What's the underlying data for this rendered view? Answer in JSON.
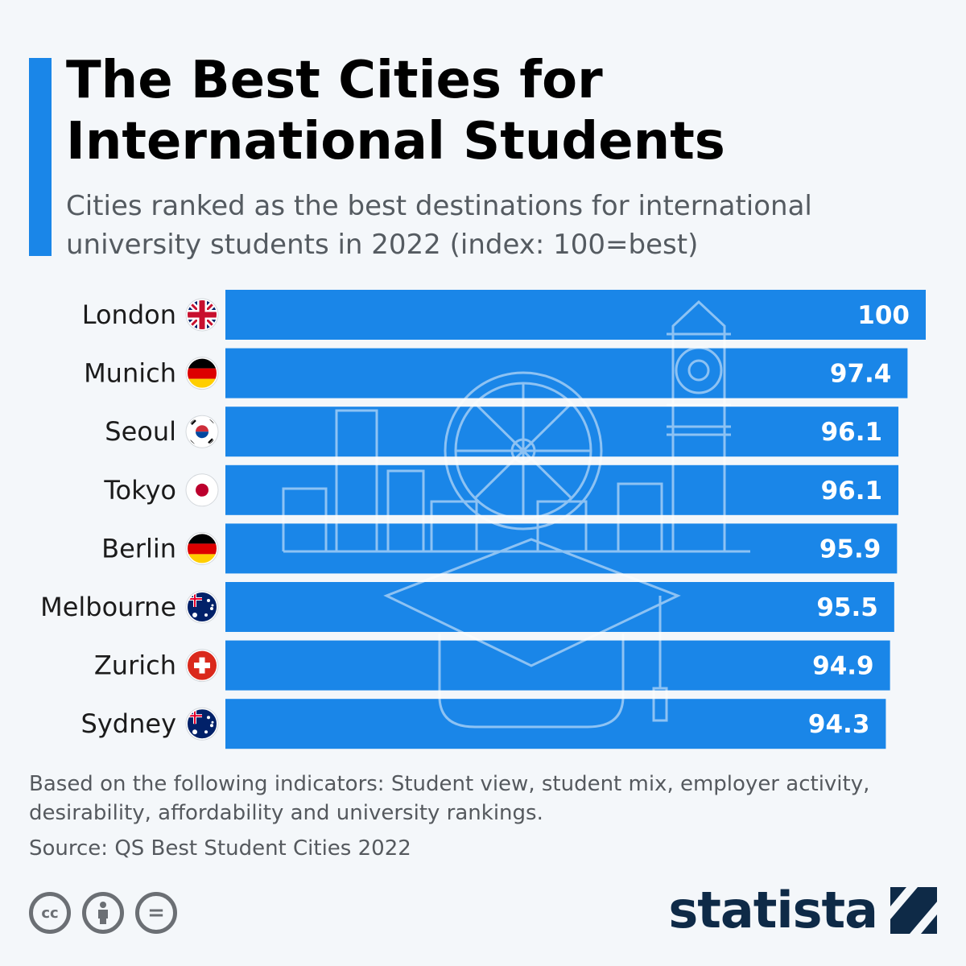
{
  "header": {
    "title": "The Best Cities for International Students",
    "subtitle": "Cities ranked as the best destinations for international university students in 2022 (index: 100=best)"
  },
  "chart_data": {
    "type": "bar",
    "orientation": "horizontal",
    "categories": [
      "London",
      "Munich",
      "Seoul",
      "Tokyo",
      "Berlin",
      "Melbourne",
      "Zurich",
      "Sydney"
    ],
    "values": [
      100,
      97.4,
      96.1,
      96.1,
      95.9,
      95.5,
      94.9,
      94.3
    ],
    "value_labels": [
      "100",
      "97.4",
      "96.1",
      "96.1",
      "95.9",
      "95.5",
      "94.9",
      "94.3"
    ],
    "flags": [
      "uk-flag-icon",
      "germany-flag-icon",
      "south-korea-flag-icon",
      "japan-flag-icon",
      "germany-flag-icon",
      "australia-flag-icon",
      "switzerland-flag-icon",
      "australia-flag-icon"
    ],
    "bar_color": "#1a86e8",
    "xlim": [
      0,
      100
    ],
    "grid": false,
    "legend": "none"
  },
  "footer": {
    "note": "Based on the following indicators: Student view, student mix, employer activity, desirability, affordability and university rankings.",
    "source": "Source: QS Best Student Cities 2022",
    "license_icons": [
      "cc-icon",
      "attribution-icon",
      "no-derivatives-icon"
    ],
    "brand": "statista"
  }
}
